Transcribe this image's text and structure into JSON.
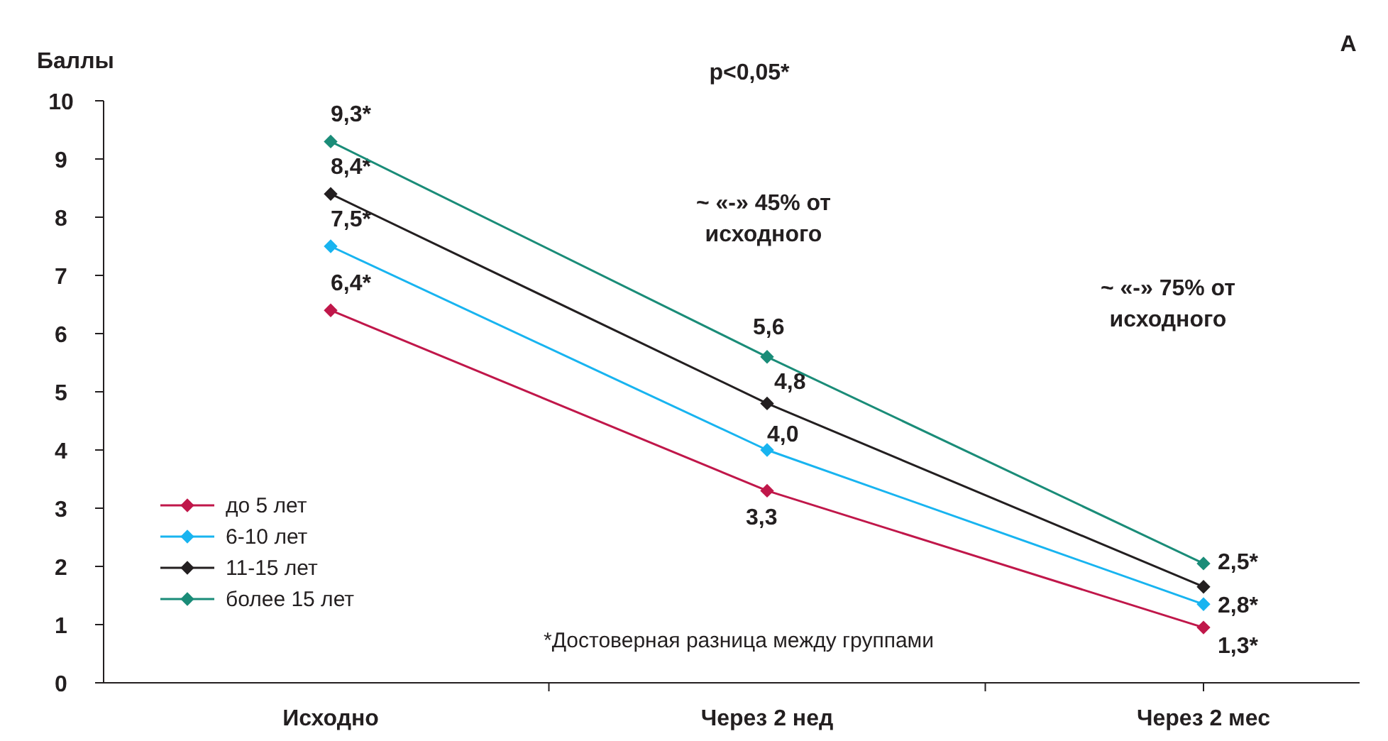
{
  "chart_data": {
    "type": "line",
    "ylabel": "Баллы",
    "categories": [
      "Исходно",
      "Через 2 нед",
      "Через 2 мес"
    ],
    "ylim": [
      0,
      10
    ],
    "yticks": [
      0,
      1,
      2,
      3,
      4,
      5,
      6,
      7,
      8,
      9,
      10
    ],
    "grid": false,
    "legend": "bottom left",
    "marker": "diamond",
    "line_style": "solid",
    "series": [
      {
        "name": "до 5 лет",
        "color": "#c0174a",
        "values": [
          6.4,
          3.3,
          0.95
        ],
        "value_labels": [
          "6,4*",
          "3,3",
          null
        ]
      },
      {
        "name": "6-10 лет",
        "color": "#18b4f0",
        "values": [
          7.5,
          4.0,
          1.35
        ],
        "value_labels": [
          "7,5*",
          "4,0",
          null
        ]
      },
      {
        "name": "11-15 лет",
        "color": "#231f20",
        "values": [
          8.4,
          4.8,
          1.65
        ],
        "value_labels": [
          "8,4*",
          "4,8",
          null
        ]
      },
      {
        "name": "более 15 лет",
        "color": "#1a8c78",
        "values": [
          9.3,
          5.6,
          2.05
        ],
        "value_labels": [
          "9,3*",
          "5,6",
          null
        ]
      }
    ],
    "annotations": [
      "p<0,05*",
      "~ «-» 45% от исходного",
      "~ «-» 75% от исходного",
      "*Достоверная разница между группами",
      "А",
      "2,5*",
      "2,8*",
      "1,3*"
    ]
  }
}
